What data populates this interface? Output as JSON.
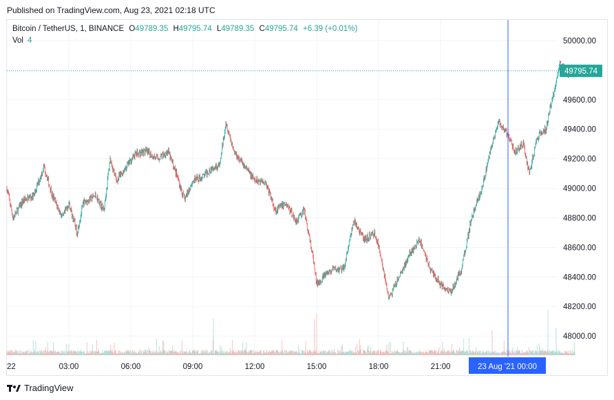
{
  "header": {
    "published": "Published on TradingView.com, Aug 23, 2021 02:18 UTC"
  },
  "legend": {
    "symbol": "Bitcoin / TetherUS, 1, BINANCE",
    "o_label": "O",
    "o_value": "49789.35",
    "h_label": "H",
    "h_value": "49795.74",
    "l_label": "L",
    "l_value": "49789.35",
    "c_label": "C",
    "c_value": "49795.74",
    "change": "+6.39 (+0.01%)",
    "vol_label": "Vol",
    "vol_value": "4"
  },
  "footer": {
    "brand": "TradingView"
  },
  "colors": {
    "up": "#26a69a",
    "down": "#ef5350",
    "price_label": "#26a69a",
    "crosshair": "#2962ff"
  },
  "chart_data": {
    "type": "candlestick",
    "x_tick_labels": [
      "22",
      "03:00",
      "06:00",
      "09:00",
      "12:00",
      "15:00",
      "18:00",
      "21:00"
    ],
    "x_ticks_hours": [
      0,
      3,
      6,
      9,
      12,
      15,
      18,
      21
    ],
    "crosshair_time_label": "23 Aug '21   00:00",
    "crosshair_hour": 24,
    "y_tick_labels": [
      "50000.00",
      "49800.00",
      "49600.00",
      "49400.00",
      "49200.00",
      "49000.00",
      "48800.00",
      "48600.00",
      "48400.00",
      "48200.00",
      "48000.00"
    ],
    "ylim": [
      47870,
      50070
    ],
    "last_price": 49795.74,
    "last_price_label": "49795.74",
    "grid": true,
    "close_path": [
      [
        0.0,
        49000
      ],
      [
        0.3,
        48800
      ],
      [
        0.8,
        48920
      ],
      [
        1.3,
        48950
      ],
      [
        1.8,
        49150
      ],
      [
        2.2,
        48950
      ],
      [
        2.7,
        48800
      ],
      [
        3.0,
        48900
      ],
      [
        3.4,
        48700
      ],
      [
        3.7,
        48900
      ],
      [
        4.3,
        48950
      ],
      [
        4.7,
        48850
      ],
      [
        5.0,
        49200
      ],
      [
        5.3,
        49050
      ],
      [
        5.8,
        49150
      ],
      [
        6.2,
        49230
      ],
      [
        6.7,
        49250
      ],
      [
        7.3,
        49200
      ],
      [
        7.8,
        49250
      ],
      [
        8.2,
        49100
      ],
      [
        8.6,
        48920
      ],
      [
        9.0,
        49050
      ],
      [
        9.5,
        49080
      ],
      [
        10.0,
        49150
      ],
      [
        10.3,
        49150
      ],
      [
        10.6,
        49450
      ],
      [
        11.0,
        49250
      ],
      [
        11.5,
        49150
      ],
      [
        12.0,
        49050
      ],
      [
        12.5,
        49050
      ],
      [
        13.0,
        48850
      ],
      [
        13.5,
        48900
      ],
      [
        14.0,
        48780
      ],
      [
        14.4,
        48850
      ],
      [
        14.8,
        48550
      ],
      [
        15.0,
        48350
      ],
      [
        15.3,
        48400
      ],
      [
        15.8,
        48450
      ],
      [
        16.3,
        48450
      ],
      [
        16.8,
        48780
      ],
      [
        17.3,
        48650
      ],
      [
        17.8,
        48700
      ],
      [
        18.1,
        48550
      ],
      [
        18.5,
        48250
      ],
      [
        19.0,
        48400
      ],
      [
        19.5,
        48550
      ],
      [
        20.0,
        48650
      ],
      [
        20.5,
        48450
      ],
      [
        21.0,
        48350
      ],
      [
        21.5,
        48300
      ],
      [
        22.0,
        48450
      ],
      [
        22.5,
        48800
      ],
      [
        23.0,
        49000
      ],
      [
        23.5,
        49300
      ],
      [
        23.8,
        49450
      ],
      [
        24.3,
        49350
      ],
      [
        24.6,
        49250
      ],
      [
        25.0,
        49300
      ],
      [
        25.3,
        49100
      ],
      [
        25.7,
        49350
      ],
      [
        26.1,
        49400
      ],
      [
        26.4,
        49600
      ],
      [
        26.8,
        49850
      ],
      [
        27.2,
        49780
      ],
      [
        27.5,
        49790
      ]
    ],
    "volume_ylim": [
      0,
      30
    ],
    "volume_spikes": [
      [
        10.0,
        16
      ],
      [
        14.9,
        16
      ],
      [
        15.0,
        18
      ],
      [
        23.5,
        11
      ],
      [
        26.2,
        20
      ],
      [
        26.6,
        12
      ]
    ]
  }
}
